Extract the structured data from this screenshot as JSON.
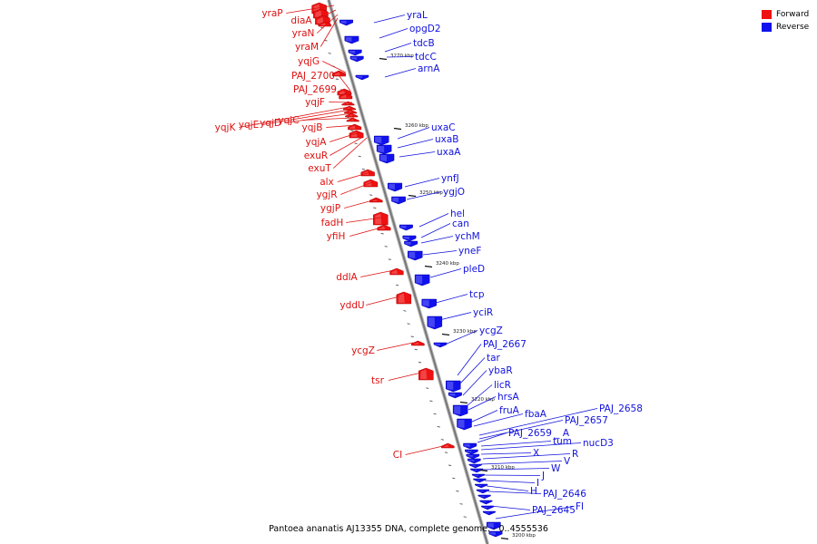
{
  "title": "Pantoea ananatis AJ13355 DNA, complete genome. - 0..4555536",
  "legend": [
    {
      "label": "Forward",
      "color": "#ee1111"
    },
    {
      "label": "Reverse",
      "color": "#1111ee"
    }
  ],
  "kbp_labels": [
    "3270 kbp",
    "3260 kbp",
    "3250 kbp",
    "3240 kbp",
    "3230 kbp",
    "3220 kbp",
    "3210 kbp",
    "3200 kbp"
  ],
  "forward_genes": [
    "yraP",
    "diaA",
    "yraN",
    "yraM",
    "yqjG",
    "PAJ_2700",
    "PAJ_2699",
    "yqjF",
    "yqjK",
    "yqjE",
    "yqjD",
    "yqjC",
    "yqjB",
    "yqjA",
    "exuR",
    "exuT",
    "alx",
    "ygjR",
    "ygjP",
    "fadH",
    "yfiH",
    "ddlA",
    "yddU",
    "ycgZ",
    "tsr",
    "CI"
  ],
  "reverse_genes": [
    "yraL",
    "opgD2",
    "tdcB",
    "tdcC",
    "arnA",
    "uxaC",
    "uxaB",
    "uxaA",
    "ynfJ",
    "ygjO",
    "hel",
    "can",
    "ychM",
    "yneF",
    "pleD",
    "tcp",
    "yciR",
    "ycgZ",
    "PAJ_2667",
    "tar",
    "ybaR",
    "licR",
    "hrsA",
    "fruA",
    "fbaA",
    "PAJ_2658",
    "PAJ_2657",
    "PAJ_2659_A",
    "tum",
    "nucD3",
    "X",
    "R",
    "V",
    "W",
    "J",
    "I",
    "H",
    "PAJ_2646",
    "PAJ_2645",
    "FI"
  ]
}
